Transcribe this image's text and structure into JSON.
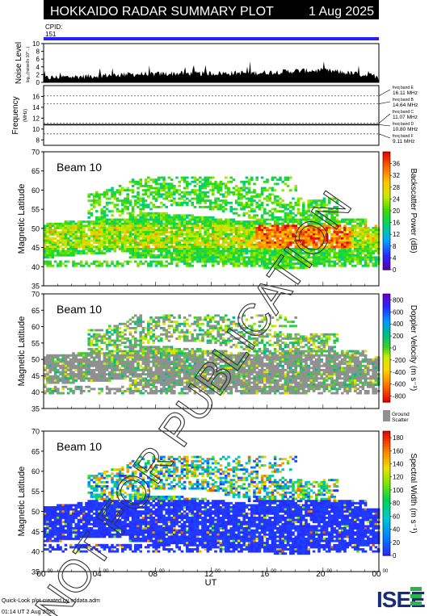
{
  "header": {
    "title": "HOKKAIDO RADAR SUMMARY PLOT",
    "date": "1 Aug 2025",
    "cpid_label": "CPID:",
    "cpid_value": "151"
  },
  "footer": {
    "credit": "Quick-Look plot created by sddata.adm",
    "timestamp": "01:14 UT  2 Aug 2025",
    "logo_text": "ISEE"
  },
  "watermark": "NOT FOR PUBLICATION",
  "colors": {
    "cpid_bar": "#2222ff",
    "noise_fill": "#000000",
    "ground_scatter": "#909090"
  },
  "chart_data": [
    {
      "type": "area",
      "id": "noise",
      "ylabel": "Noise Level",
      "ylabel_sub": "log₁₀(noise/ln 10^...)",
      "ylim": [
        0,
        10
      ],
      "yticks": [
        "0",
        "2",
        "4",
        "6",
        "8",
        "10"
      ],
      "x_hours": [
        0,
        1,
        2,
        3,
        4,
        5,
        6,
        7,
        8,
        9,
        10,
        11,
        12,
        13,
        14,
        15,
        16,
        17,
        18,
        19,
        20,
        21,
        22,
        23,
        24
      ],
      "values": [
        1.0,
        1.2,
        1.3,
        1.4,
        1.6,
        1.8,
        1.9,
        2.0,
        2.0,
        2.1,
        2.2,
        2.1,
        2.2,
        2.2,
        2.3,
        2.3,
        2.4,
        2.6,
        2.8,
        2.9,
        2.9,
        2.6,
        2.2,
        1.8,
        1.4
      ]
    },
    {
      "type": "line",
      "id": "frequency",
      "ylabel": "Frequency",
      "ylabel_sub": "(MHz)",
      "ylim": [
        7,
        18
      ],
      "yticks": [
        "8",
        "10",
        "12",
        "14",
        "16"
      ],
      "bands": [
        {
          "name": "freq band E",
          "freq": 16.11
        },
        {
          "name": "freq band B",
          "freq": 14.64
        },
        {
          "name": "freq band C",
          "freq": 11.07
        },
        {
          "name": "freq band D",
          "freq": 10.8
        },
        {
          "name": "freq band F",
          "freq": 9.11
        }
      ],
      "band_labels": [
        "16.11 MHz",
        "14.64 MHz",
        "11.07 MHz",
        "10.80 MHz",
        "9.11 MHz"
      ],
      "band_names": [
        "freq band E",
        "freq band B",
        "freq band C",
        "freq band D",
        "freq band F"
      ],
      "operating_freq": 10.8
    },
    {
      "type": "heatmap",
      "id": "power",
      "beam_label": "Beam 10",
      "ylabel": "Magnetic Latitude",
      "ylim": [
        35,
        70
      ],
      "yticks": [
        "35",
        "40",
        "45",
        "50",
        "55",
        "60",
        "65",
        "70"
      ],
      "colorbar_label": "Backscatter Power (dB)",
      "colorbar_ticks": [
        "0",
        "4",
        "8",
        "12",
        "16",
        "20",
        "24",
        "28",
        "32",
        "36"
      ],
      "colorbar_range": [
        0,
        40
      ]
    },
    {
      "type": "heatmap",
      "id": "velocity",
      "beam_label": "Beam 10",
      "ylabel": "Magnetic Latitude",
      "ylim": [
        35,
        70
      ],
      "yticks": [
        "35",
        "40",
        "45",
        "50",
        "55",
        "60",
        "65",
        "70"
      ],
      "colorbar_label": "Doppler Velocity (m s⁻¹)",
      "colorbar_ticks": [
        "-800",
        "-600",
        "-400",
        "-200",
        "0",
        "200",
        "400",
        "600",
        "800"
      ],
      "colorbar_range": [
        -900,
        900
      ],
      "ground_label": "Ground Scatter"
    },
    {
      "type": "heatmap",
      "id": "width",
      "beam_label": "Beam 10",
      "ylabel": "Magnetic Latitude",
      "ylim": [
        35,
        70
      ],
      "yticks": [
        "35",
        "40",
        "45",
        "50",
        "55",
        "60",
        "65",
        "70"
      ],
      "colorbar_label": "Spectral Width (m s⁻¹)",
      "colorbar_ticks": [
        "0",
        "20",
        "40",
        "60",
        "80",
        "100",
        "120",
        "140",
        "160",
        "180"
      ],
      "colorbar_range": [
        0,
        190
      ]
    }
  ],
  "x_axis": {
    "label": "UT",
    "xlim": [
      0,
      24
    ],
    "ticks": [
      {
        "hour": 0,
        "main": "00",
        "sup": "00"
      },
      {
        "hour": 4,
        "main": "04",
        "sup": "00"
      },
      {
        "hour": 8,
        "main": "08",
        "sup": "00"
      },
      {
        "hour": 12,
        "main": "12",
        "sup": "00"
      },
      {
        "hour": 16,
        "main": "16",
        "sup": "00"
      },
      {
        "hour": 20,
        "main": "20",
        "sup": "00"
      },
      {
        "hour": 24,
        "main": "00",
        "sup": "00"
      }
    ]
  }
}
